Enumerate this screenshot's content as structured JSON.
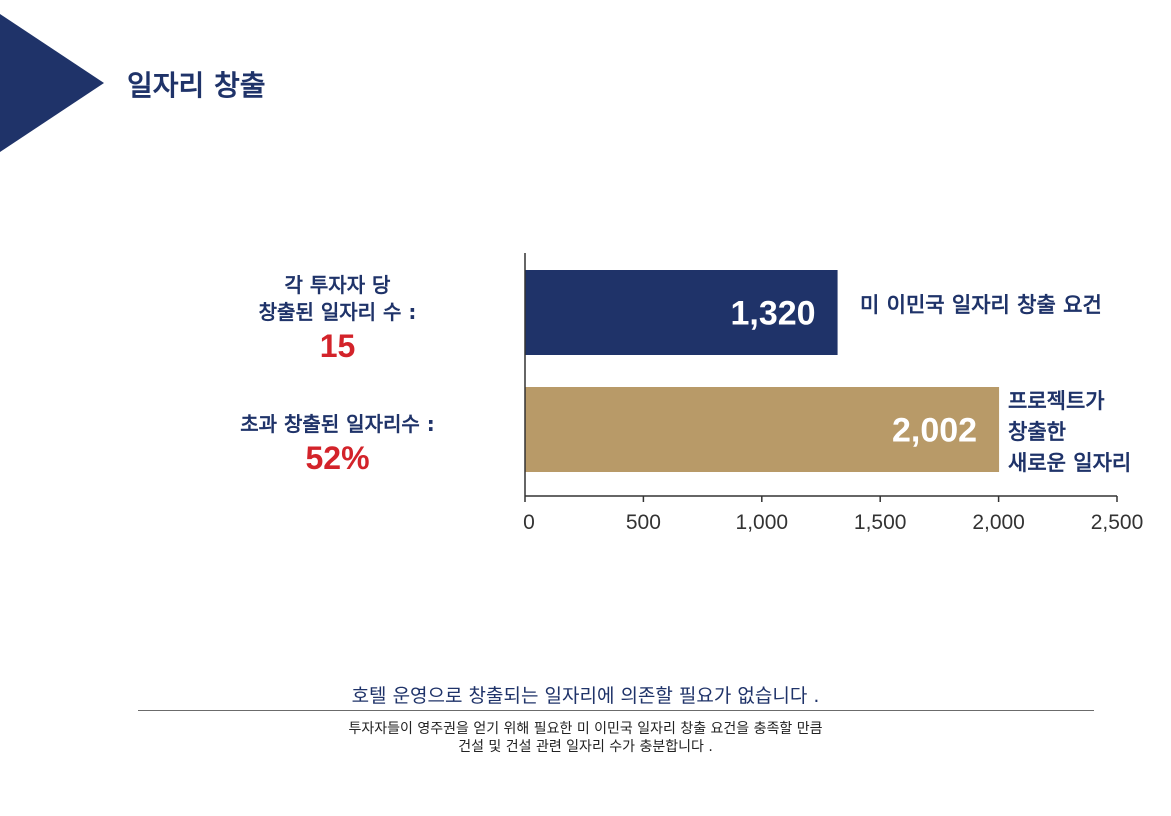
{
  "title": "일자리 창출",
  "stats": [
    {
      "lines": [
        "각 투자자 당",
        "창출된 일자리 수 :"
      ],
      "value": "15"
    },
    {
      "lines": [
        "초과 창출된 일자리수 :"
      ],
      "value": "52%"
    }
  ],
  "chart_data": {
    "type": "bar",
    "orientation": "horizontal",
    "categories": [
      "미 이민국 일자리 창출 요건",
      "프로젝트가 창출한 새로운 일자리"
    ],
    "category_label_lines": [
      [
        "미 이민국 일자리 창출 요건"
      ],
      [
        "프로젝트가",
        "창출한",
        "새로운 일자리"
      ]
    ],
    "values": [
      1320,
      2002
    ],
    "value_labels": [
      "1,320",
      "2,002"
    ],
    "colors": [
      "#1f3369",
      "#b89a68"
    ],
    "xlim": [
      0,
      2500
    ],
    "ticks": [
      0,
      500,
      1000,
      1500,
      2000,
      2500
    ],
    "tick_labels": [
      "0",
      "500",
      "1,000",
      "1,500",
      "2,000",
      "2,500"
    ],
    "grid": false,
    "title": "",
    "xlabel": "",
    "ylabel": ""
  },
  "footer": {
    "main": "호텔 운영으로 창출되는 일자리에 의존할 필요가 없습니다 .",
    "sub_lines": [
      "투자자들이 영주권을 얻기 위해 필요한 미 이민국 일자리 창출 요건을 충족할 만큼",
      "건설 및 건설 관련 일자리 수가 충분합니다 ."
    ]
  }
}
